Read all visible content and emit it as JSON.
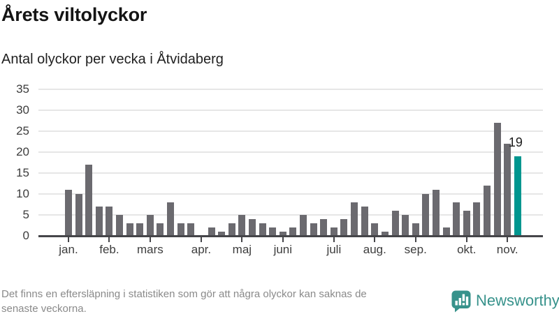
{
  "header": {
    "title": "Årets viltolyckor",
    "subtitle": "Antal olyckor per vecka i Åtvidaberg"
  },
  "chart_data": {
    "type": "bar",
    "title": "Årets viltolyckor",
    "subtitle": "Antal olyckor per vecka i Åtvidaberg",
    "x_unit": "vecka",
    "values": [
      11,
      10,
      17,
      7,
      7,
      5,
      3,
      3,
      5,
      3,
      8,
      3,
      3,
      0,
      2,
      1,
      3,
      5,
      4,
      3,
      2,
      1,
      2,
      5,
      3,
      4,
      2,
      4,
      8,
      7,
      3,
      1,
      6,
      5,
      3,
      10,
      11,
      2,
      8,
      6,
      8,
      12,
      27,
      22,
      19
    ],
    "weeks": 45,
    "highlight_last": true,
    "last_value_label": "19",
    "y_ticks": [
      0,
      5,
      10,
      15,
      20,
      25,
      30,
      35
    ],
    "ylim": [
      0,
      35
    ],
    "grid": true,
    "legend_position": "none",
    "month_ticks": [
      {
        "label": "jan.",
        "week": 1
      },
      {
        "label": "feb.",
        "week": 5
      },
      {
        "label": "mars",
        "week": 9
      },
      {
        "label": "apr.",
        "week": 14
      },
      {
        "label": "maj",
        "week": 18
      },
      {
        "label": "juni",
        "week": 22
      },
      {
        "label": "juli",
        "week": 27
      },
      {
        "label": "aug.",
        "week": 31
      },
      {
        "label": "sep.",
        "week": 35
      },
      {
        "label": "okt.",
        "week": 40
      },
      {
        "label": "nov.",
        "week": 44
      }
    ],
    "colors": {
      "bar": "#6b6a6f",
      "highlight": "#00968f",
      "grid": "#e6e6e6",
      "axis": "#454549",
      "tick_label": "#3d3d3d",
      "annotation": "#1c1c1c"
    }
  },
  "footer": {
    "note_lines": [
      "Det finns en eftersläpning i statistiken som gör att några olyckor kan saknas de",
      "senaste veckorna."
    ],
    "brand": "Newsworthy",
    "brand_color": "#37928b"
  }
}
